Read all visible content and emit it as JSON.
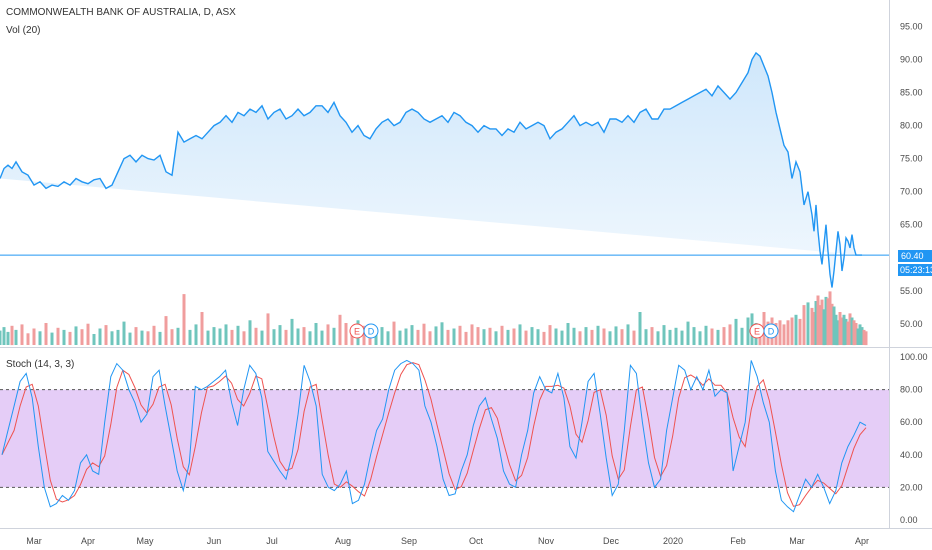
{
  "header": {
    "title": "COMMONWEALTH BANK OF AUSTRALIA, D, ASX",
    "vol_label": "Vol (20)"
  },
  "stoch_label": "Stoch (14, 3, 3)",
  "price_tag": "60.40",
  "countdown_tag": "05:23:13",
  "event_markers": [
    {
      "label": "E",
      "color": "#ef5350"
    },
    {
      "label": "D",
      "color": "#2196f3"
    },
    {
      "label": "E",
      "color": "#ef5350"
    },
    {
      "label": "D",
      "color": "#2196f3"
    }
  ],
  "colors": {
    "price_line": "#2196f3",
    "area_fill": "#cfe7fb",
    "vol_up": "#6fc5bc",
    "vol_down": "#f09d9d",
    "stoch_k": "#2196f3",
    "stoch_d": "#ef5350",
    "stoch_band": "#e5cdf7",
    "axis_text": "#4a4a4a"
  },
  "chart_data": [
    {
      "type": "area",
      "title": "COMMONWEALTH BANK OF AUSTRALIA, D, ASX",
      "x_ticks": [
        "Mar",
        "Apr",
        "May",
        "Jun",
        "Jul",
        "Aug",
        "Sep",
        "Oct",
        "Nov",
        "Dec",
        "2020",
        "Feb",
        "Mar",
        "Apr"
      ],
      "y_ticks": [
        "95.00",
        "90.00",
        "85.00",
        "80.00",
        "75.00",
        "70.00",
        "65.00",
        "55.00",
        "50.00"
      ],
      "ylim": [
        46.5,
        99
      ],
      "last_price": 60.4,
      "x": [
        0,
        4,
        8,
        12,
        16,
        22,
        28,
        34,
        40,
        46,
        52,
        58,
        64,
        70,
        76,
        82,
        88,
        94,
        100,
        106,
        112,
        118,
        124,
        130,
        136,
        142,
        148,
        154,
        160,
        166,
        172,
        178,
        184,
        190,
        196,
        202,
        208,
        214,
        220,
        226,
        232,
        238,
        244,
        250,
        256,
        262,
        268,
        274,
        280,
        286,
        292,
        298,
        304,
        310,
        316,
        322,
        328,
        334,
        340,
        346,
        352,
        358,
        364,
        370,
        376,
        382,
        388,
        394,
        400,
        406,
        412,
        418,
        424,
        430,
        436,
        442,
        448,
        454,
        460,
        466,
        472,
        478,
        484,
        490,
        496,
        502,
        508,
        514,
        520,
        526,
        532,
        538,
        544,
        550,
        556,
        562,
        568,
        574,
        580,
        586,
        592,
        598,
        604,
        610,
        616,
        622,
        628,
        634,
        640,
        646,
        652,
        658,
        664,
        670,
        676,
        682,
        688,
        694,
        700,
        706,
        712,
        718,
        724,
        730,
        736,
        742,
        748,
        752,
        756,
        760,
        764,
        768,
        772,
        776,
        780,
        784,
        788,
        792,
        796,
        800,
        804,
        808,
        812,
        814,
        816,
        818,
        820,
        822,
        824,
        826,
        828,
        830,
        832,
        834,
        836,
        838,
        840,
        842,
        844,
        846,
        848,
        850,
        852,
        854,
        856,
        858,
        860,
        862,
        864,
        866
      ],
      "price": [
        72.0,
        73.5,
        74.0,
        73.5,
        74.5,
        73.0,
        72.5,
        71.0,
        71.5,
        70.5,
        71.0,
        70.8,
        71.5,
        71.0,
        72.0,
        71.5,
        71.2,
        71.8,
        72.0,
        70.5,
        71.0,
        73.0,
        75.0,
        75.5,
        74.5,
        75.5,
        75.0,
        74.8,
        75.5,
        73.0,
        72.5,
        79.0,
        77.5,
        78.0,
        78.5,
        78.0,
        79.0,
        80.0,
        80.5,
        81.5,
        80.5,
        82.0,
        81.5,
        82.5,
        82.0,
        83.0,
        81.0,
        82.0,
        82.5,
        81.0,
        81.5,
        82.5,
        81.5,
        82.0,
        83.0,
        83.0,
        82.0,
        83.5,
        81.5,
        80.5,
        79.0,
        80.0,
        78.5,
        78.0,
        79.5,
        80.5,
        81.0,
        80.0,
        80.5,
        82.0,
        82.5,
        82.0,
        81.0,
        80.5,
        81.0,
        81.5,
        80.5,
        82.0,
        81.5,
        80.5,
        80.0,
        79.0,
        80.0,
        79.5,
        79.5,
        78.5,
        79.5,
        79.0,
        80.5,
        79.5,
        80.0,
        80.5,
        80.0,
        78.0,
        79.0,
        79.5,
        80.5,
        81.5,
        80.0,
        80.5,
        80.0,
        80.5,
        79.0,
        81.0,
        81.0,
        80.5,
        81.5,
        80.5,
        82.0,
        82.5,
        81.0,
        81.0,
        82.5,
        82.5,
        83.0,
        83.5,
        84.0,
        84.5,
        85.0,
        85.5,
        84.5,
        86.0,
        85.0,
        84.0,
        85.0,
        86.5,
        88.0,
        90.0,
        91.0,
        90.5,
        89.0,
        87.5,
        85.0,
        82.0,
        79.5,
        77.0,
        76.0,
        72.0,
        74.5,
        73.0,
        68.0,
        70.0,
        66.5,
        64.0,
        68.0,
        64.0,
        61.0,
        59.0,
        62.0,
        65.0,
        61.0,
        57.5,
        55.5,
        58.0,
        61.0,
        64.0,
        62.0,
        58.0,
        60.0,
        63.0,
        62.5,
        61.5,
        63.5,
        61.5,
        60.4,
        60.4,
        60.4,
        60.4
      ],
      "volume": [
        2.1,
        2.6,
        1.9,
        2.8,
        2.2,
        3.0,
        1.7,
        2.4,
        2.0,
        3.2,
        1.8,
        2.5,
        2.2,
        1.9,
        2.7,
        2.3,
        3.1,
        1.6,
        2.4,
        2.9,
        2.0,
        2.2,
        3.4,
        1.8,
        2.6,
        2.1,
        2.0,
        2.8,
        1.9,
        4.2,
        2.3,
        2.5,
        7.4,
        2.2,
        3.0,
        4.8,
        2.1,
        2.6,
        2.4,
        3.0,
        2.2,
        2.8,
        2.0,
        3.6,
        2.5,
        2.1,
        4.6,
        2.3,
        2.9,
        2.2,
        3.8,
        2.4,
        2.6,
        2.0,
        3.2,
        2.1,
        3.0,
        2.5,
        4.4,
        3.2,
        2.0,
        3.6,
        2.8,
        2.2,
        2.4,
        2.6,
        2.0,
        3.4,
        2.1,
        2.4,
        2.9,
        2.2,
        3.1,
        2.0,
        2.7,
        3.3,
        2.2,
        2.4,
        2.8,
        1.9,
        3.0,
        2.6,
        2.3,
        2.5,
        2.0,
        2.8,
        2.2,
        2.4,
        3.0,
        2.1,
        2.6,
        2.3,
        1.9,
        2.9,
        2.4,
        2.1,
        3.2,
        2.5,
        2.0,
        2.6,
        2.2,
        2.8,
        2.4,
        2.0,
        2.7,
        2.3,
        3.0,
        2.1,
        4.8,
        2.3,
        2.6,
        2.0,
        2.9,
        2.2,
        2.5,
        2.1,
        3.4,
        2.6,
        2.0,
        2.8,
        2.4,
        2.2,
        2.6,
        3.0,
        3.8,
        2.5,
        4.0,
        4.6,
        3.2,
        2.8,
        4.8,
        3.4,
        4.0,
        3.2,
        3.6,
        3.0,
        3.6,
        4.0,
        4.4,
        3.8,
        5.8,
        6.2,
        5.4,
        4.8,
        6.4,
        7.2,
        5.8,
        6.6,
        5.2,
        7.0,
        6.8,
        7.8,
        6.0,
        5.6,
        4.4,
        3.6,
        4.8,
        4.0,
        4.4,
        3.8,
        3.4,
        4.6,
        4.0,
        3.6,
        3.2,
        2.4,
        3.0,
        2.6,
        2.2,
        2.0
      ]
    },
    {
      "type": "line",
      "title": "Stoch (14, 3, 3)",
      "y_ticks": [
        "100.00",
        "80.00",
        "60.00",
        "40.00",
        "20.00",
        "0.00"
      ],
      "ylim": [
        -5,
        105
      ],
      "bands": [
        20,
        80
      ],
      "series": [
        {
          "values_k": [
            40,
            55,
            70,
            85,
            90,
            75,
            45,
            20,
            8,
            10,
            15,
            12,
            18,
            35,
            40,
            30,
            28,
            60,
            88,
            96,
            92,
            80,
            72,
            60,
            65,
            88,
            92,
            70,
            50,
            30,
            18,
            35,
            82,
            80,
            82,
            85,
            88,
            92,
            72,
            58,
            80,
            95,
            90,
            75,
            42,
            36,
            30,
            25,
            40,
            65,
            95,
            85,
            70,
            28,
            20,
            18,
            22,
            30,
            10,
            12,
            22,
            40,
            55,
            62,
            80,
            92,
            96,
            98,
            96,
            92,
            70,
            60,
            45,
            25,
            15,
            16,
            30,
            40,
            58,
            70,
            75,
            62,
            50,
            30,
            22,
            20,
            40,
            55,
            78,
            88,
            80,
            78,
            90,
            75,
            45,
            38,
            60,
            85,
            90,
            65,
            38,
            15,
            22,
            55,
            95,
            90,
            60,
            35,
            20,
            25,
            55,
            75,
            95,
            92,
            80,
            88,
            80,
            92,
            76,
            80,
            78,
            30,
            45,
            60,
            98,
            88,
            72,
            60,
            30,
            12,
            8,
            5,
            15,
            25,
            20,
            28,
            20,
            10,
            18,
            35,
            45,
            52,
            60,
            58
          ]
        }
      ],
      "d_lag_note": ""
    }
  ]
}
